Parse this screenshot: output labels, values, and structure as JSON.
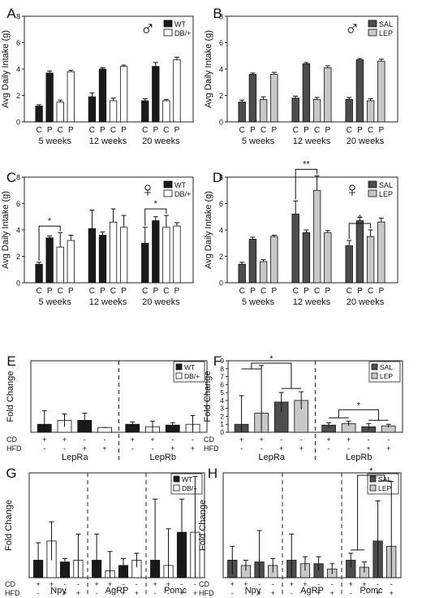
{
  "colors": {
    "wt": "#1a1a1a",
    "db": "#ffffff",
    "sal": "#4d4d4d",
    "lep": "#c8c8c8",
    "stroke": "#111111"
  },
  "chart_data": [
    {
      "panel": "A",
      "type": "bar",
      "sex_symbol": "♂",
      "ylabel": "Avg Daily Intake (g)",
      "ylim": [
        0,
        8
      ],
      "yticks": [
        "0",
        "2",
        "4",
        "6",
        "8"
      ],
      "legend": [
        {
          "name": "WT",
          "color": "#1a1a1a"
        },
        {
          "name": "DB/+",
          "color": "#ffffff"
        }
      ],
      "groups": [
        "5 weeks",
        "12 weeks",
        "20 weeks"
      ],
      "bar_labels": [
        "C",
        "P",
        "C",
        "P"
      ],
      "series_index": [
        0,
        0,
        1,
        1
      ],
      "values": [
        [
          1.2,
          3.7,
          1.5,
          3.8
        ],
        [
          1.9,
          4.0,
          1.6,
          4.2
        ],
        [
          1.6,
          4.2,
          1.6,
          4.7
        ]
      ],
      "errors": [
        [
          0.1,
          0.15,
          0.15,
          0.1
        ],
        [
          0.3,
          0.1,
          0.2,
          0.1
        ],
        [
          0.15,
          0.3,
          0.1,
          0.2
        ]
      ],
      "annotations": []
    },
    {
      "panel": "B",
      "type": "bar",
      "sex_symbol": "♂",
      "ylabel": "Avg Daily Intake (g)",
      "ylim": [
        0,
        8
      ],
      "yticks": [
        "0",
        "2",
        "4",
        "6",
        "8"
      ],
      "legend": [
        {
          "name": "SAL",
          "color": "#4d4d4d"
        },
        {
          "name": "LEP",
          "color": "#c8c8c8"
        }
      ],
      "groups": [
        "5 weeks",
        "12 weeks",
        "20 weeks"
      ],
      "bar_labels": [
        "C",
        "P",
        "C",
        "P"
      ],
      "series_index": [
        0,
        0,
        1,
        1
      ],
      "values": [
        [
          1.5,
          3.6,
          1.7,
          3.6
        ],
        [
          1.8,
          4.4,
          1.7,
          4.1
        ],
        [
          1.7,
          4.7,
          1.6,
          4.6
        ]
      ],
      "errors": [
        [
          0.15,
          0.1,
          0.2,
          0.15
        ],
        [
          0.15,
          0.1,
          0.15,
          0.15
        ],
        [
          0.15,
          0.1,
          0.15,
          0.15
        ]
      ],
      "annotations": []
    },
    {
      "panel": "C",
      "type": "bar",
      "sex_symbol": "♀",
      "ylabel": "Avg Daily Intake (g)",
      "ylim": [
        0,
        8
      ],
      "yticks": [
        "0",
        "2",
        "4",
        "6",
        "8"
      ],
      "legend": [
        {
          "name": "WT",
          "color": "#1a1a1a"
        },
        {
          "name": "DB/+",
          "color": "#ffffff"
        }
      ],
      "groups": [
        "5 weeks",
        "12 weeks",
        "20 weeks"
      ],
      "bar_labels": [
        "C",
        "P",
        "C",
        "P"
      ],
      "series_index": [
        0,
        0,
        1,
        1
      ],
      "values": [
        [
          1.4,
          3.4,
          2.7,
          3.2
        ],
        [
          4.1,
          3.6,
          4.6,
          4.2
        ],
        [
          3.0,
          4.7,
          4.2,
          4.3
        ]
      ],
      "errors": [
        [
          0.15,
          0.15,
          1.1,
          0.4
        ],
        [
          1.4,
          0.25,
          1.0,
          0.9
        ],
        [
          1.2,
          0.3,
          0.9,
          0.25
        ]
      ],
      "annotations": [
        {
          "label": "*",
          "group": 0,
          "from": 0,
          "to": 2
        },
        {
          "label": "*",
          "group": 2,
          "from": 0,
          "to": 2
        }
      ]
    },
    {
      "panel": "D",
      "type": "bar",
      "sex_symbol": "♀",
      "ylabel": "Avg Daily Intake (g)",
      "ylim": [
        0,
        8
      ],
      "yticks": [
        "0",
        "2",
        "4",
        "6",
        "8"
      ],
      "legend": [
        {
          "name": "SAL",
          "color": "#4d4d4d"
        },
        {
          "name": "LEP",
          "color": "#c8c8c8"
        }
      ],
      "groups": [
        "5 weeks",
        "12 weeks",
        "20 weeks"
      ],
      "bar_labels": [
        "C",
        "P",
        "C",
        "P"
      ],
      "series_index": [
        0,
        0,
        1,
        1
      ],
      "values": [
        [
          1.4,
          3.3,
          1.6,
          3.5
        ],
        [
          5.2,
          3.8,
          7.0,
          3.8
        ],
        [
          2.8,
          4.7,
          3.5,
          4.6
        ]
      ],
      "errors": [
        [
          0.15,
          0.15,
          0.15,
          0.1
        ],
        [
          1.0,
          0.2,
          1.1,
          0.15
        ],
        [
          0.4,
          0.25,
          0.5,
          0.3
        ]
      ],
      "annotations": [
        {
          "label": "**",
          "group": 1,
          "from": 0,
          "to": 2
        },
        {
          "label": "^",
          "group": 2,
          "from": 0,
          "to": 2
        }
      ]
    },
    {
      "panel": "E",
      "type": "bar",
      "ylabel": "Fold Change",
      "ylim": [
        0,
        9
      ],
      "yticks": [],
      "legend": [
        {
          "name": "WT",
          "color": "#1a1a1a"
        },
        {
          "name": "DB/+",
          "color": "#ffffff"
        }
      ],
      "row_labels": [
        "CD",
        "HFD"
      ],
      "cd": [
        "+",
        "+",
        "-",
        "-"
      ],
      "hfd": [
        "-",
        "-",
        "+",
        "+"
      ],
      "series_index": [
        0,
        1,
        0,
        1
      ],
      "genes": [
        "LepRa",
        "LepRb"
      ],
      "values": [
        [
          1.0,
          1.5,
          1.5,
          0.6
        ],
        [
          1.0,
          0.7,
          0.9,
          1.0
        ]
      ],
      "errors": [
        [
          1.7,
          0.8,
          0.9,
          0.0
        ],
        [
          0.3,
          0.7,
          0.3,
          1.1
        ]
      ],
      "annotations": []
    },
    {
      "panel": "F",
      "type": "bar",
      "ylabel": "Fold Change",
      "ylim": [
        0,
        9
      ],
      "yticks": [
        "0",
        "1",
        "2",
        "3",
        "4",
        "5",
        "6",
        "7",
        "8",
        "9"
      ],
      "legend": [
        {
          "name": "SAL",
          "color": "#4d4d4d"
        },
        {
          "name": "LEP",
          "color": "#c8c8c8"
        }
      ],
      "row_labels": [
        "CD",
        "HFD"
      ],
      "cd": [
        "+",
        "+",
        "-",
        "-"
      ],
      "hfd": [
        "-",
        "-",
        "+",
        "+"
      ],
      "series_index": [
        0,
        1,
        0,
        1
      ],
      "genes": [
        "LepRa",
        "LepRb"
      ],
      "values": [
        [
          1.0,
          2.4,
          3.8,
          4.0
        ],
        [
          0.9,
          1.1,
          0.7,
          0.8
        ]
      ],
      "errors": [
        [
          3.6,
          6.0,
          1.2,
          1.1
        ],
        [
          0.3,
          0.3,
          0.4,
          0.2
        ]
      ],
      "annotations": [
        {
          "label": "*",
          "gene": 0,
          "from": [
            0,
            1
          ],
          "to": [
            2,
            3
          ]
        },
        {
          "label": "*",
          "gene": 1,
          "from": [
            0,
            1
          ],
          "to": [
            2,
            3
          ]
        }
      ]
    },
    {
      "panel": "G",
      "type": "bar",
      "ylabel": "Fold Change",
      "ylim": [
        0,
        6
      ],
      "yticks": [],
      "legend": [
        {
          "name": "WT",
          "color": "#1a1a1a"
        },
        {
          "name": "DB/+",
          "color": "#ffffff"
        }
      ],
      "row_labels": [
        "CD",
        "HFD"
      ],
      "cd": [
        "+",
        "+",
        "-",
        "-"
      ],
      "hfd": [
        "-",
        "-",
        "+",
        "+"
      ],
      "series_index": [
        0,
        1,
        0,
        1
      ],
      "genes": [
        "Npy",
        "AgRP",
        "Pomc"
      ],
      "values": [
        [
          1.0,
          2.1,
          0.9,
          1.0
        ],
        [
          1.0,
          0.4,
          0.7,
          1.0
        ],
        [
          1.0,
          0.7,
          2.6,
          2.6
        ]
      ],
      "errors": [
        [
          1.0,
          1.1,
          0.2,
          1.5
        ],
        [
          1.5,
          1.1,
          0.4,
          0.4
        ],
        [
          3.5,
          2.1,
          1.9,
          3.2
        ]
      ],
      "annotations": []
    },
    {
      "panel": "H",
      "type": "bar",
      "ylabel": "Fold Change",
      "ylim": [
        0,
        6
      ],
      "yticks": [],
      "legend": [
        {
          "name": "SAL",
          "color": "#4d4d4d"
        },
        {
          "name": "LEP",
          "color": "#c8c8c8"
        }
      ],
      "row_labels": [
        "CD",
        "HFD"
      ],
      "cd": [
        "+",
        "+",
        "-",
        "-"
      ],
      "hfd": [
        "-",
        "-",
        "+",
        "+"
      ],
      "series_index": [
        0,
        1,
        0,
        1
      ],
      "genes": [
        "Npy",
        "AgRP",
        "Pomc"
      ],
      "values": [
        [
          1.0,
          0.7,
          0.9,
          0.7
        ],
        [
          1.0,
          0.8,
          0.8,
          0.5
        ],
        [
          1.0,
          0.6,
          2.1,
          1.8
        ]
      ],
      "errors": [
        [
          0.8,
          0.3,
          1.8,
          0.4
        ],
        [
          1.5,
          0.4,
          0.4,
          0.3
        ],
        [
          0.4,
          0.3,
          2.3,
          3.7
        ]
      ],
      "annotations": [
        {
          "label": "*",
          "gene": 2,
          "from": [
            0,
            1
          ],
          "to": [
            2,
            3
          ]
        }
      ]
    }
  ]
}
